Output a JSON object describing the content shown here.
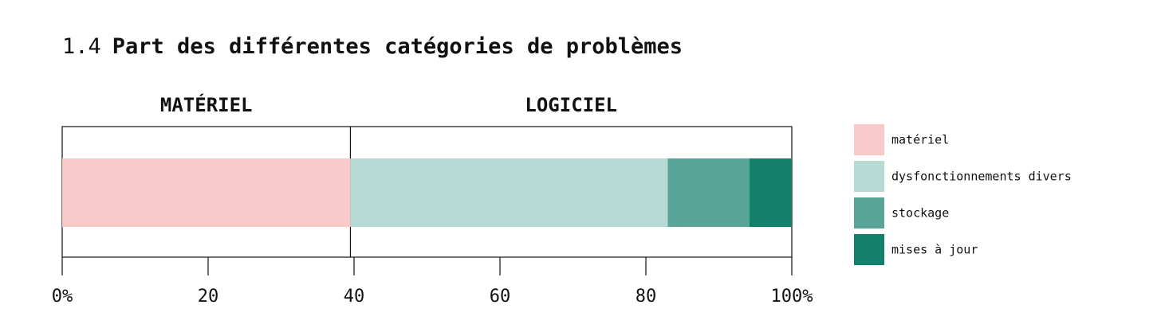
{
  "title_number": "1.4",
  "title": "Part des différentes catégories de problèmes",
  "chart_data": {
    "type": "bar",
    "orientation": "horizontal",
    "stacked": true,
    "unit": "%",
    "xlim": [
      0,
      100
    ],
    "x_ticks": [
      0,
      20,
      40,
      60,
      80,
      100
    ],
    "x_tick_labels": [
      "0%",
      "20",
      "40",
      "60",
      "80",
      "100%"
    ],
    "groups": [
      {
        "label": "MATÉRIEL",
        "range": [
          0,
          39.5
        ]
      },
      {
        "label": "LOGICIEL",
        "range": [
          39.5,
          100
        ]
      }
    ],
    "series": [
      {
        "name": "matériel",
        "value": 39.5,
        "color": "#f8c9c9"
      },
      {
        "name": "dysfonctionnements divers",
        "value": 43.5,
        "color": "#b7d9d3"
      },
      {
        "name": "stockage",
        "value": 11.2,
        "color": "#58a496"
      },
      {
        "name": "mises à jour",
        "value": 5.8,
        "color": "#12806b"
      }
    ],
    "legend_position": "right",
    "grid": false
  }
}
